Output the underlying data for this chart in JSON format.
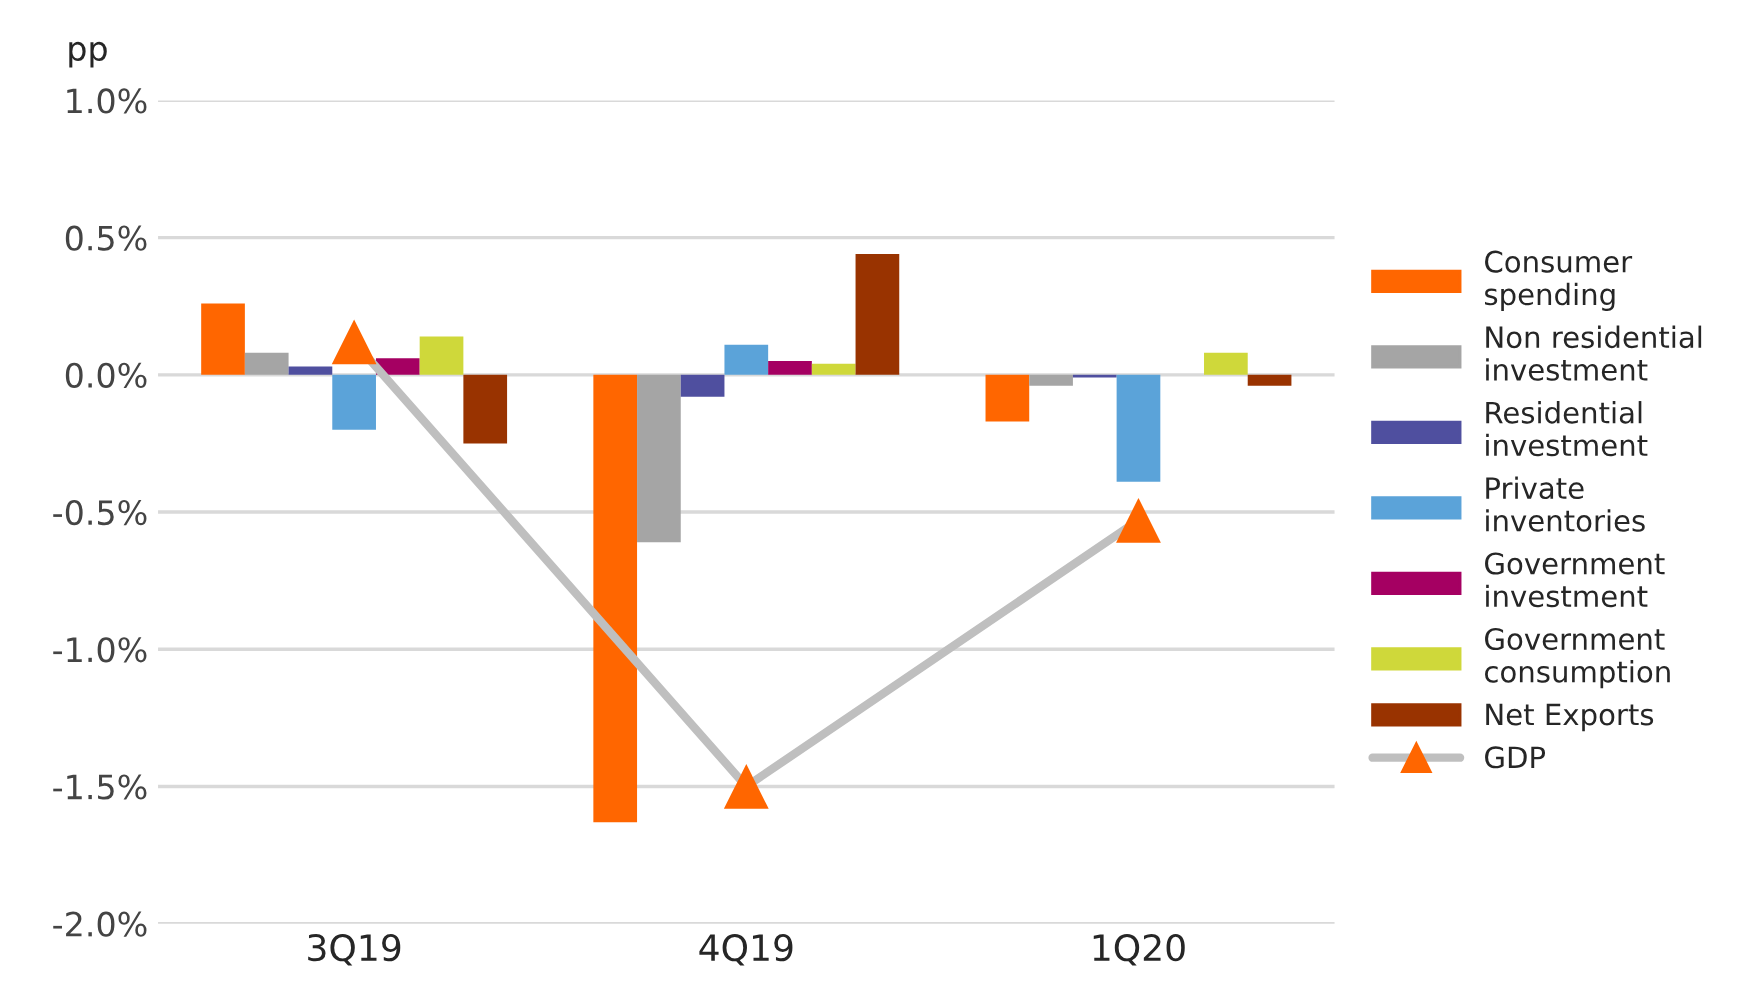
{
  "chart_data": {
    "type": "bar",
    "ylabel": "pp",
    "categories": [
      "3Q19",
      "4Q19",
      "1Q20"
    ],
    "series": [
      {
        "name": "Consumer\nspending",
        "color": "#ff6600",
        "values": [
          0.26,
          -1.63,
          -0.17
        ]
      },
      {
        "name": "Non residential\ninvestment",
        "color": "#a5a5a5",
        "values": [
          0.08,
          -0.61,
          -0.04
        ]
      },
      {
        "name": "Residential\ninvestment",
        "color": "#4f4f9f",
        "values": [
          0.03,
          -0.08,
          -0.01
        ]
      },
      {
        "name": "Private\ninventories",
        "color": "#5ba3d9",
        "values": [
          -0.2,
          0.11,
          -0.39
        ]
      },
      {
        "name": "Government\ninvestment",
        "color": "#a50062",
        "values": [
          0.06,
          0.05,
          null
        ]
      },
      {
        "name": "Government\nconsumption",
        "color": "#cfd83a",
        "values": [
          0.14,
          0.04,
          0.08
        ]
      },
      {
        "name": "Net Exports",
        "color": "#993300",
        "values": [
          -0.25,
          0.44,
          -0.04
        ]
      },
      {
        "name": "GDP",
        "type": "line",
        "color": "#bfbfbf",
        "colors": [
          "#ff6600",
          "#ff6600",
          "#ff6600"
        ],
        "marker": "triangle",
        "values": [
          0.12,
          -1.5,
          -0.53
        ]
      }
    ],
    "ylim": [
      -2.0,
      1.0
    ],
    "yticks": [
      {
        "value": -2.0,
        "label": "-2.0%"
      },
      {
        "value": -1.5,
        "label": "-1.5%"
      },
      {
        "value": -1.0,
        "label": "-1.0%"
      },
      {
        "value": -0.5,
        "label": "-0.5%"
      },
      {
        "value": 0.0,
        "label": "0.0%"
      },
      {
        "value": 0.5,
        "label": "0.5%"
      },
      {
        "value": 1.0,
        "label": "1.0%"
      }
    ],
    "grid": "y",
    "legend": "right"
  }
}
